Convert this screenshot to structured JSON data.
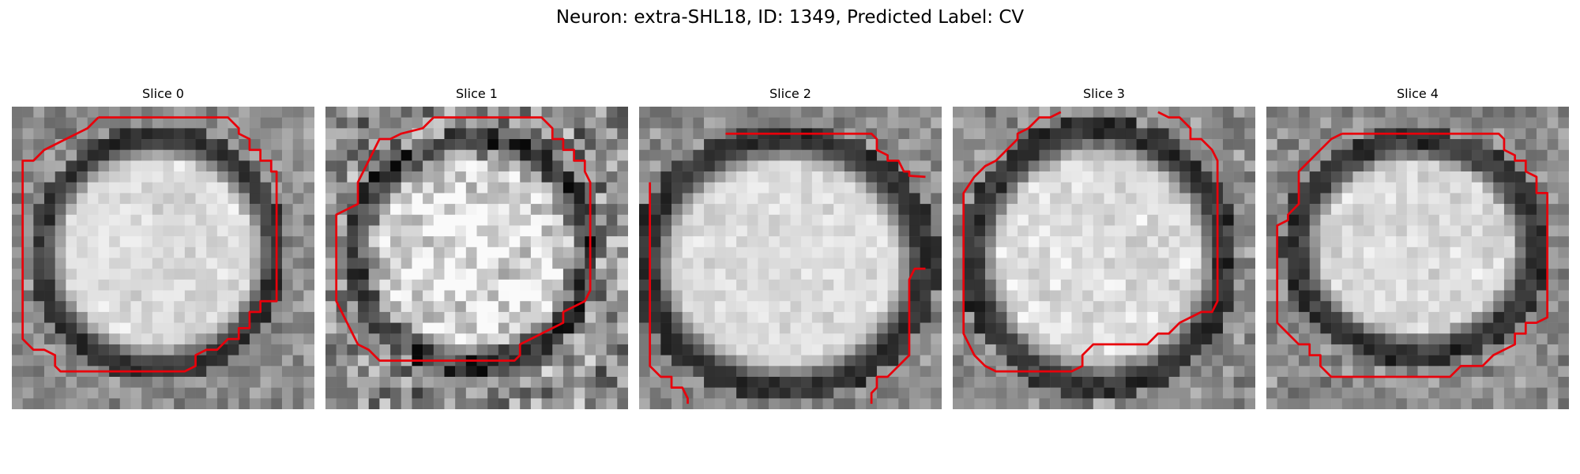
{
  "title": "Neuron: extra-SHL18, ID: 1349, Predicted Label: CV",
  "panels": [
    {
      "title": "Slice 0",
      "contour_color": "#e8000b"
    },
    {
      "title": "Slice 1",
      "contour_color": "#e8000b"
    },
    {
      "title": "Slice 2",
      "contour_color": "#e8000b"
    },
    {
      "title": "Slice 3",
      "contour_color": "#e8000b"
    },
    {
      "title": "Slice 4",
      "contour_color": "#e8000b"
    }
  ]
}
